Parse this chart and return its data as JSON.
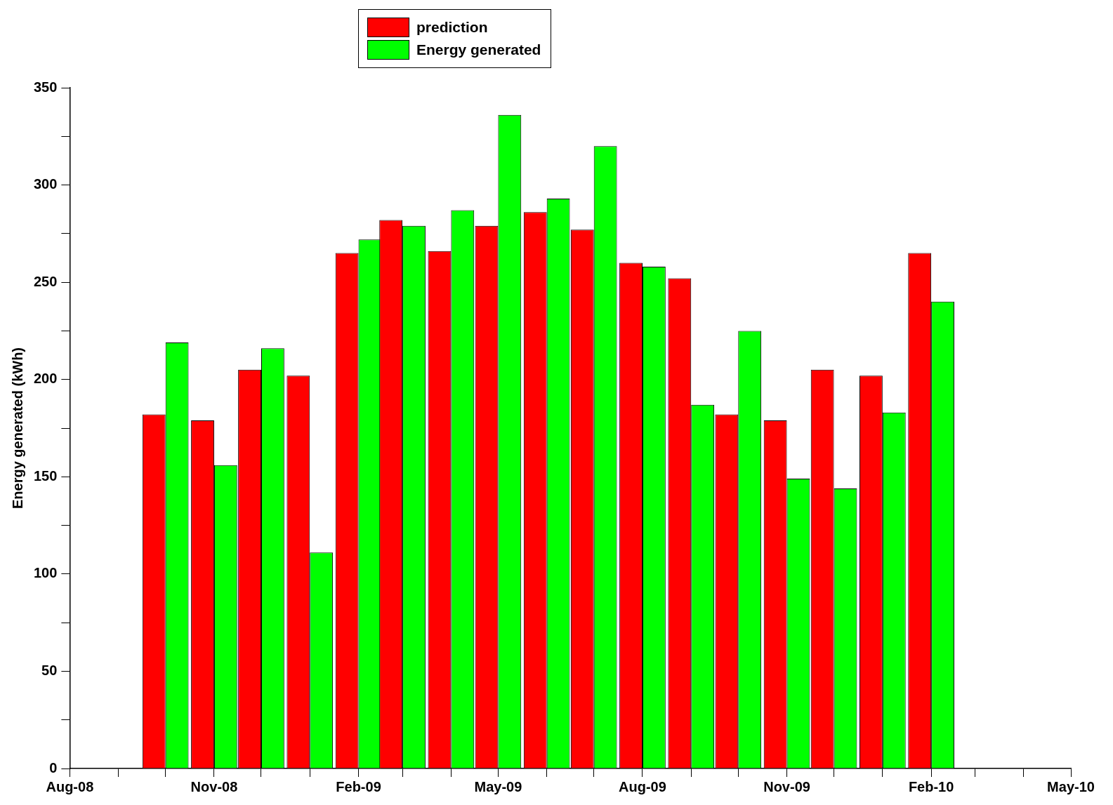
{
  "chart_data": {
    "type": "bar",
    "ylabel": "Energy generated (kWh)",
    "x": [
      "2008-10",
      "2008-11",
      "2008-12",
      "2009-01",
      "2009-02",
      "2009-03",
      "2009-04",
      "2009-05",
      "2009-06",
      "2009-07",
      "2009-08",
      "2009-09",
      "2009-10",
      "2009-11",
      "2009-12",
      "2010-01",
      "2010-02"
    ],
    "series": [
      {
        "name": "prediction",
        "color": "#ff0000",
        "values": [
          182,
          179,
          205,
          202,
          265,
          282,
          266,
          279,
          286,
          277,
          260,
          252,
          182,
          179,
          205,
          202,
          265
        ]
      },
      {
        "name": "Energy generated",
        "color": "#00ff00",
        "values": [
          219,
          156,
          216,
          111,
          272,
          279,
          287,
          336,
          293,
          320,
          258,
          187,
          225,
          149,
          144,
          183,
          240
        ]
      }
    ],
    "xlim": [
      "2008-08",
      "2010-05"
    ],
    "xticks": [
      {
        "value": "2008-08",
        "label": "Aug-08"
      },
      {
        "value": "2008-09",
        "label": null
      },
      {
        "value": "2008-10",
        "label": null
      },
      {
        "value": "2008-11",
        "label": "Nov-08"
      },
      {
        "value": "2008-12",
        "label": null
      },
      {
        "value": "2009-01",
        "label": null
      },
      {
        "value": "2009-02",
        "label": "Feb-09"
      },
      {
        "value": "2009-03",
        "label": null
      },
      {
        "value": "2009-04",
        "label": null
      },
      {
        "value": "2009-05",
        "label": "May-09"
      },
      {
        "value": "2009-06",
        "label": null
      },
      {
        "value": "2009-07",
        "label": null
      },
      {
        "value": "2009-08",
        "label": "Aug-09"
      },
      {
        "value": "2009-09",
        "label": null
      },
      {
        "value": "2009-10",
        "label": null
      },
      {
        "value": "2009-11",
        "label": "Nov-09"
      },
      {
        "value": "2009-12",
        "label": null
      },
      {
        "value": "2010-01",
        "label": null
      },
      {
        "value": "2010-02",
        "label": "Feb-10"
      },
      {
        "value": "2010-03",
        "label": null
      },
      {
        "value": "2010-04",
        "label": null
      },
      {
        "value": "2010-05",
        "label": "May-10"
      }
    ],
    "ylim": [
      0,
      350
    ],
    "yticks": [
      0,
      {
        "value": 25,
        "label": null
      },
      50,
      {
        "value": 75,
        "label": null
      },
      100,
      {
        "value": 125,
        "label": null
      },
      150,
      {
        "value": 175,
        "label": null
      },
      200,
      {
        "value": 225,
        "label": null
      },
      250,
      {
        "value": 275,
        "label": null
      },
      300,
      {
        "value": 325,
        "label": null
      },
      350
    ],
    "grid": false,
    "legend": "top"
  }
}
